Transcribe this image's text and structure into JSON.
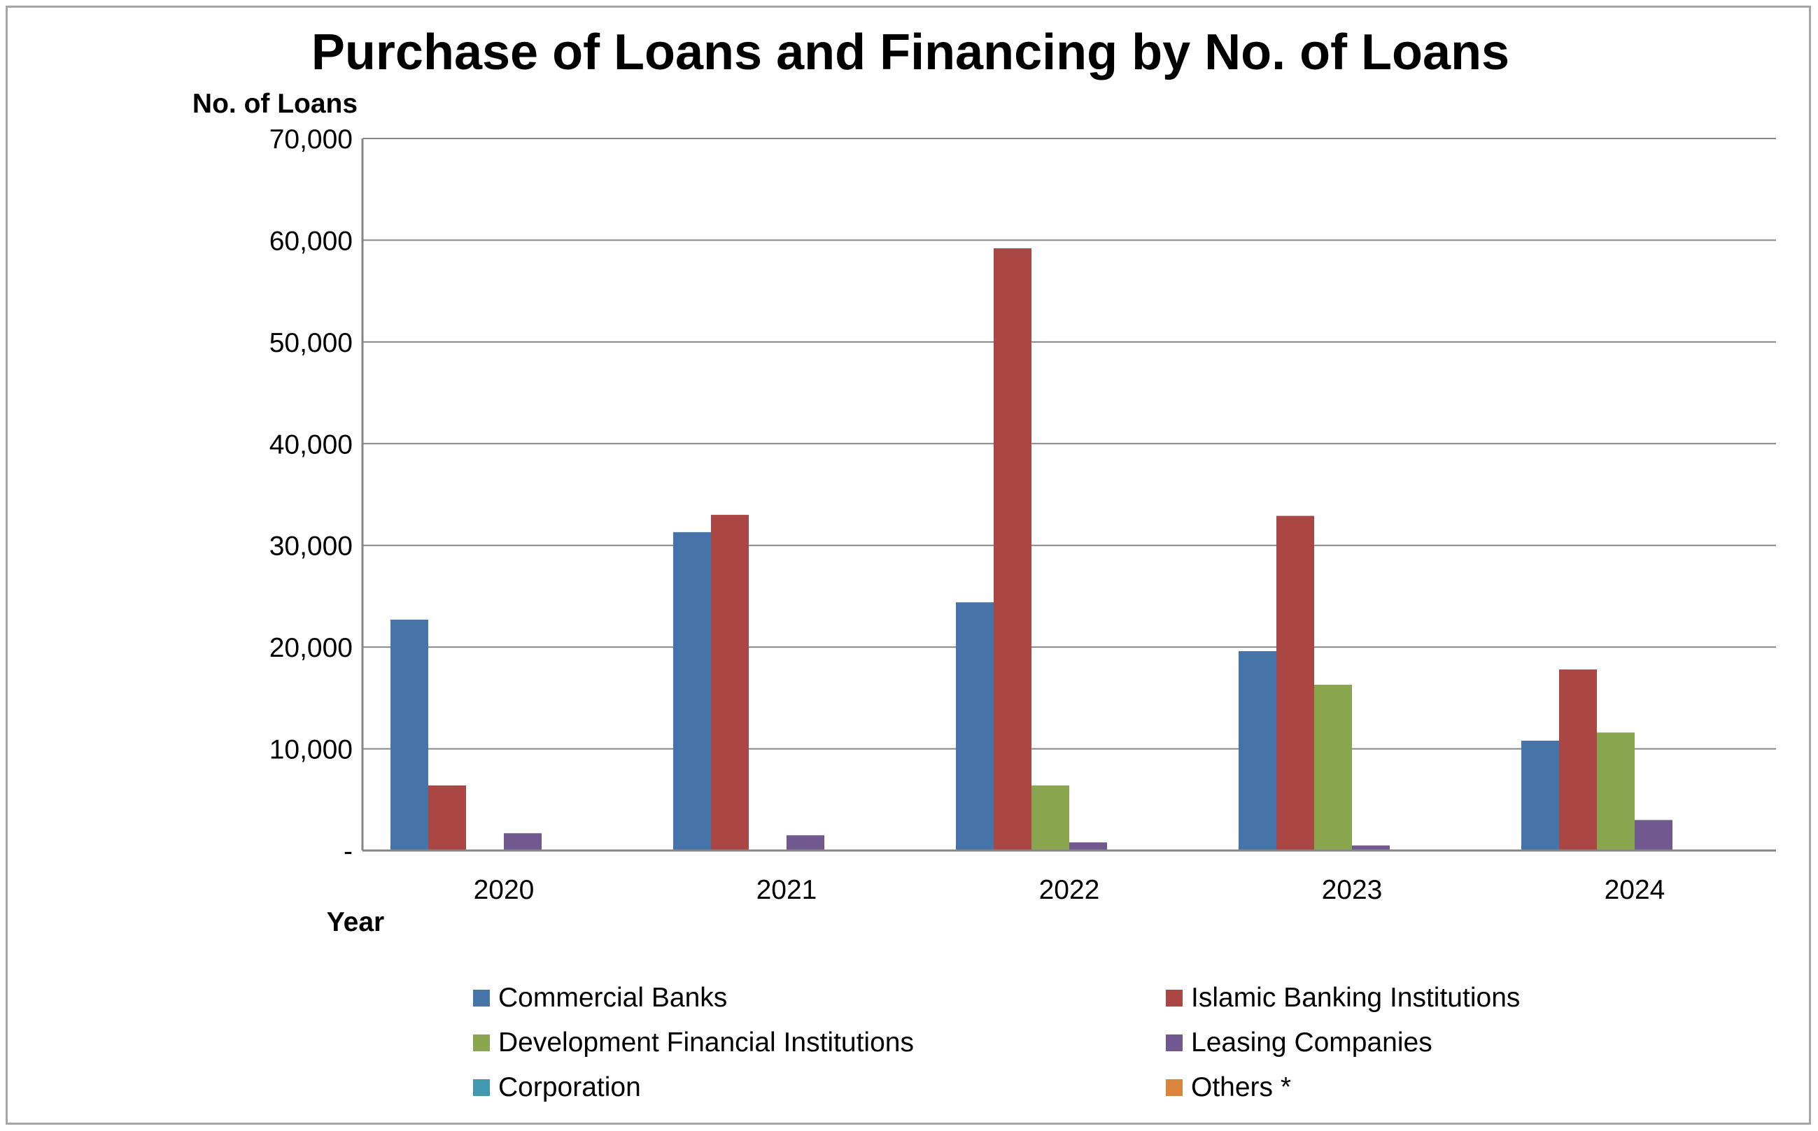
{
  "chart_data": {
    "type": "bar",
    "title": "Purchase of Loans and Financing by No. of Loans",
    "ylabel": "No. of Loans",
    "xlabel": "Year",
    "categories": [
      "2020",
      "2021",
      "2022",
      "2023",
      "2024"
    ],
    "ylim": [
      0,
      70000
    ],
    "yticks": [
      0,
      10000,
      20000,
      30000,
      40000,
      50000,
      60000,
      70000
    ],
    "ytick_labels": [
      "-",
      "10,000",
      "20,000",
      "30,000",
      "40,000",
      "50,000",
      "60,000",
      "70,000"
    ],
    "grid": true,
    "legend_position": "bottom",
    "series": [
      {
        "name": "Commercial Banks",
        "color": "#4674a9",
        "values": [
          22700,
          31300,
          24400,
          19600,
          10800
        ]
      },
      {
        "name": "Islamic Banking Institutions",
        "color": "#aa4744",
        "values": [
          6400,
          33000,
          59200,
          32900,
          17800
        ]
      },
      {
        "name": "Development Financial Institutions",
        "color": "#89a54e",
        "values": [
          0,
          0,
          6400,
          16300,
          11600
        ]
      },
      {
        "name": "Leasing Companies",
        "color": "#71588f",
        "values": [
          1700,
          1500,
          800,
          500,
          3000
        ]
      },
      {
        "name": "Corporation",
        "color": "#4298af",
        "values": [
          0,
          0,
          0,
          0,
          0
        ]
      },
      {
        "name": "Others *",
        "color": "#db843d",
        "values": [
          0,
          0,
          0,
          0,
          0
        ]
      }
    ]
  }
}
